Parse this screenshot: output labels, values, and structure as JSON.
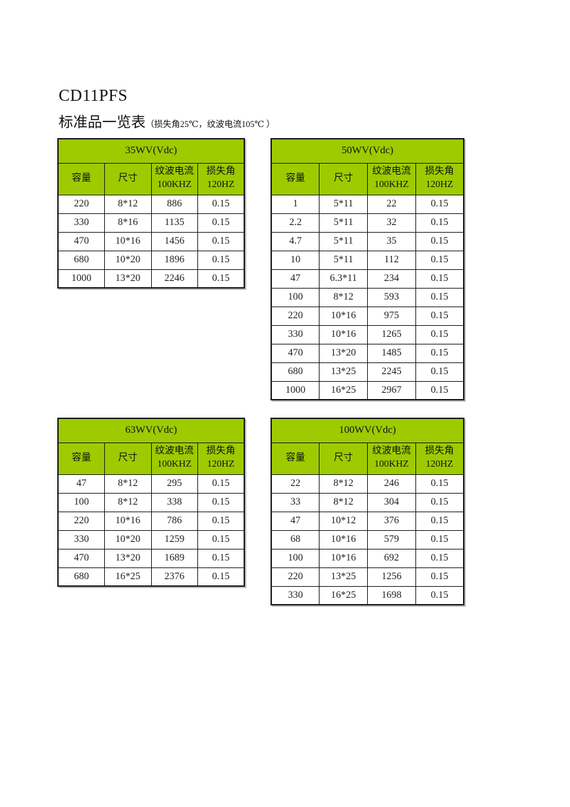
{
  "page": {
    "title": "CD11PFS",
    "section_title": "标准品一览表",
    "section_note": "（损失角25℃，纹波电流105℃ ）"
  },
  "colors": {
    "header_green": "#9DCB00",
    "border": "#1a1a1a"
  },
  "columns": [
    [
      "容量"
    ],
    [
      "尺寸"
    ],
    [
      "纹波电流",
      "100KHZ"
    ],
    [
      "损失角",
      "120HZ"
    ]
  ],
  "tables": [
    {
      "title": "35WV(Vdc)",
      "rows": [
        [
          "220",
          "8*12",
          "886",
          "0.15"
        ],
        [
          "330",
          "8*16",
          "1135",
          "0.15"
        ],
        [
          "470",
          "10*16",
          "1456",
          "0.15"
        ],
        [
          "680",
          "10*20",
          "1896",
          "0.15"
        ],
        [
          "1000",
          "13*20",
          "2246",
          "0.15"
        ]
      ]
    },
    {
      "title": "50WV(Vdc)",
      "rows": [
        [
          "1",
          "5*11",
          "22",
          "0.15"
        ],
        [
          "2.2",
          "5*11",
          "32",
          "0.15"
        ],
        [
          "4.7",
          "5*11",
          "35",
          "0.15"
        ],
        [
          "10",
          "5*11",
          "112",
          "0.15"
        ],
        [
          "47",
          "6.3*11",
          "234",
          "0.15"
        ],
        [
          "100",
          "8*12",
          "593",
          "0.15"
        ],
        [
          "220",
          "10*16",
          "975",
          "0.15"
        ],
        [
          "330",
          "10*16",
          "1265",
          "0.15"
        ],
        [
          "470",
          "13*20",
          "1485",
          "0.15"
        ],
        [
          "680",
          "13*25",
          "2245",
          "0.15"
        ],
        [
          "1000",
          "16*25",
          "2967",
          "0.15"
        ]
      ]
    },
    {
      "title": "63WV(Vdc)",
      "rows": [
        [
          "47",
          "8*12",
          "295",
          "0.15"
        ],
        [
          "100",
          "8*12",
          "338",
          "0.15"
        ],
        [
          "220",
          "10*16",
          "786",
          "0.15"
        ],
        [
          "330",
          "10*20",
          "1259",
          "0.15"
        ],
        [
          "470",
          "13*20",
          "1689",
          "0.15"
        ],
        [
          "680",
          "16*25",
          "2376",
          "0.15"
        ]
      ]
    },
    {
      "title": "100WV(Vdc)",
      "rows": [
        [
          "22",
          "8*12",
          "246",
          "0.15"
        ],
        [
          "33",
          "8*12",
          "304",
          "0.15"
        ],
        [
          "47",
          "10*12",
          "376",
          "0.15"
        ],
        [
          "68",
          "10*16",
          "579",
          "0.15"
        ],
        [
          "100",
          "10*16",
          "692",
          "0.15"
        ],
        [
          "220",
          "13*25",
          "1256",
          "0.15"
        ],
        [
          "330",
          "16*25",
          "1698",
          "0.15"
        ]
      ]
    }
  ]
}
